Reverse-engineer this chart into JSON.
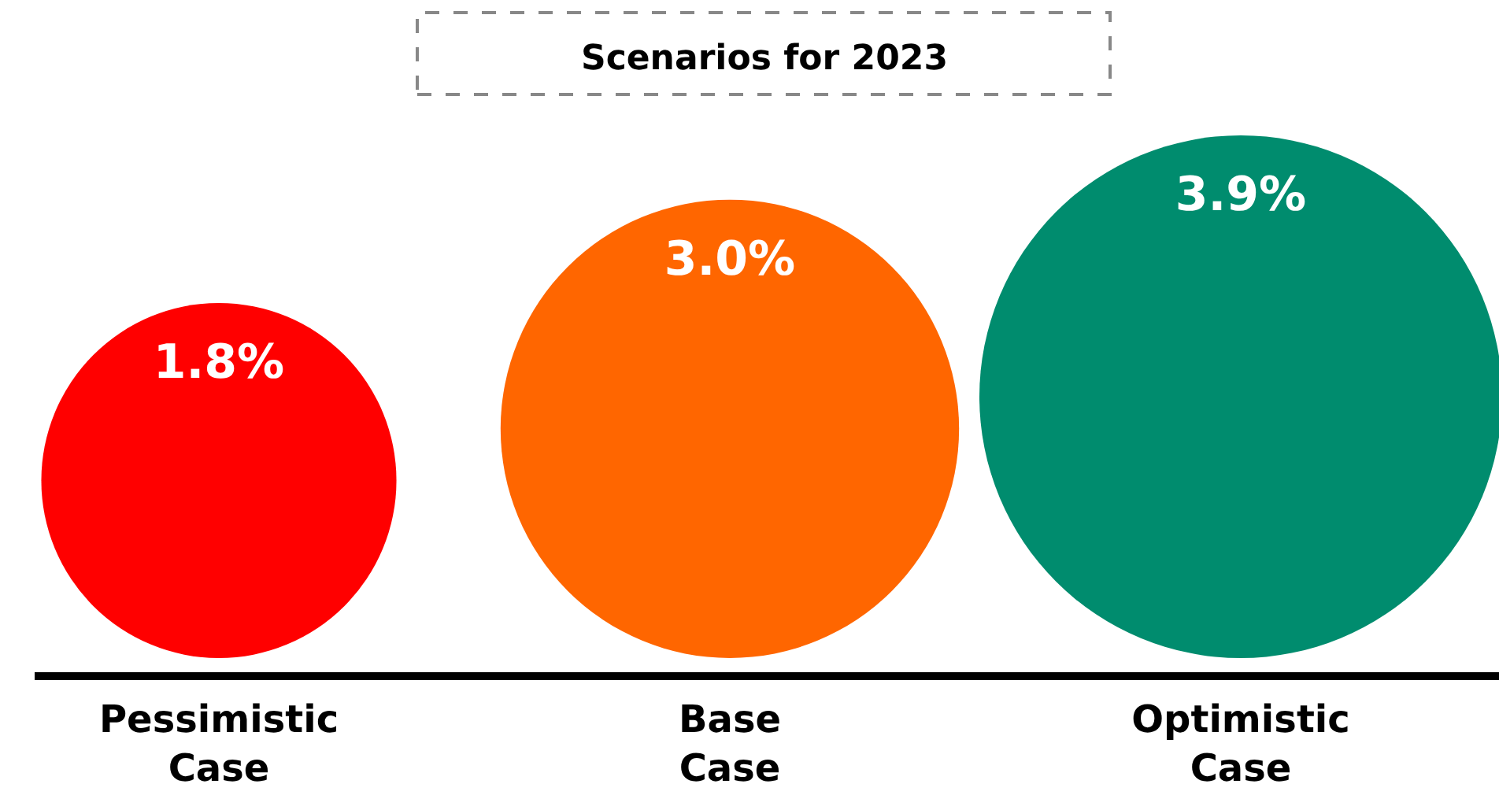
{
  "chart_data": {
    "type": "other",
    "title": "Scenarios for 2023",
    "categories": [
      "Pessimistic Case",
      "Base Case",
      "Optimistic Case"
    ],
    "values": [
      1.8,
      3.0,
      3.9
    ],
    "value_labels": [
      "1.8%",
      "3.0%",
      "3.9%"
    ],
    "colors": [
      "#ff0000",
      "#ff6600",
      "#008c6e"
    ]
  }
}
